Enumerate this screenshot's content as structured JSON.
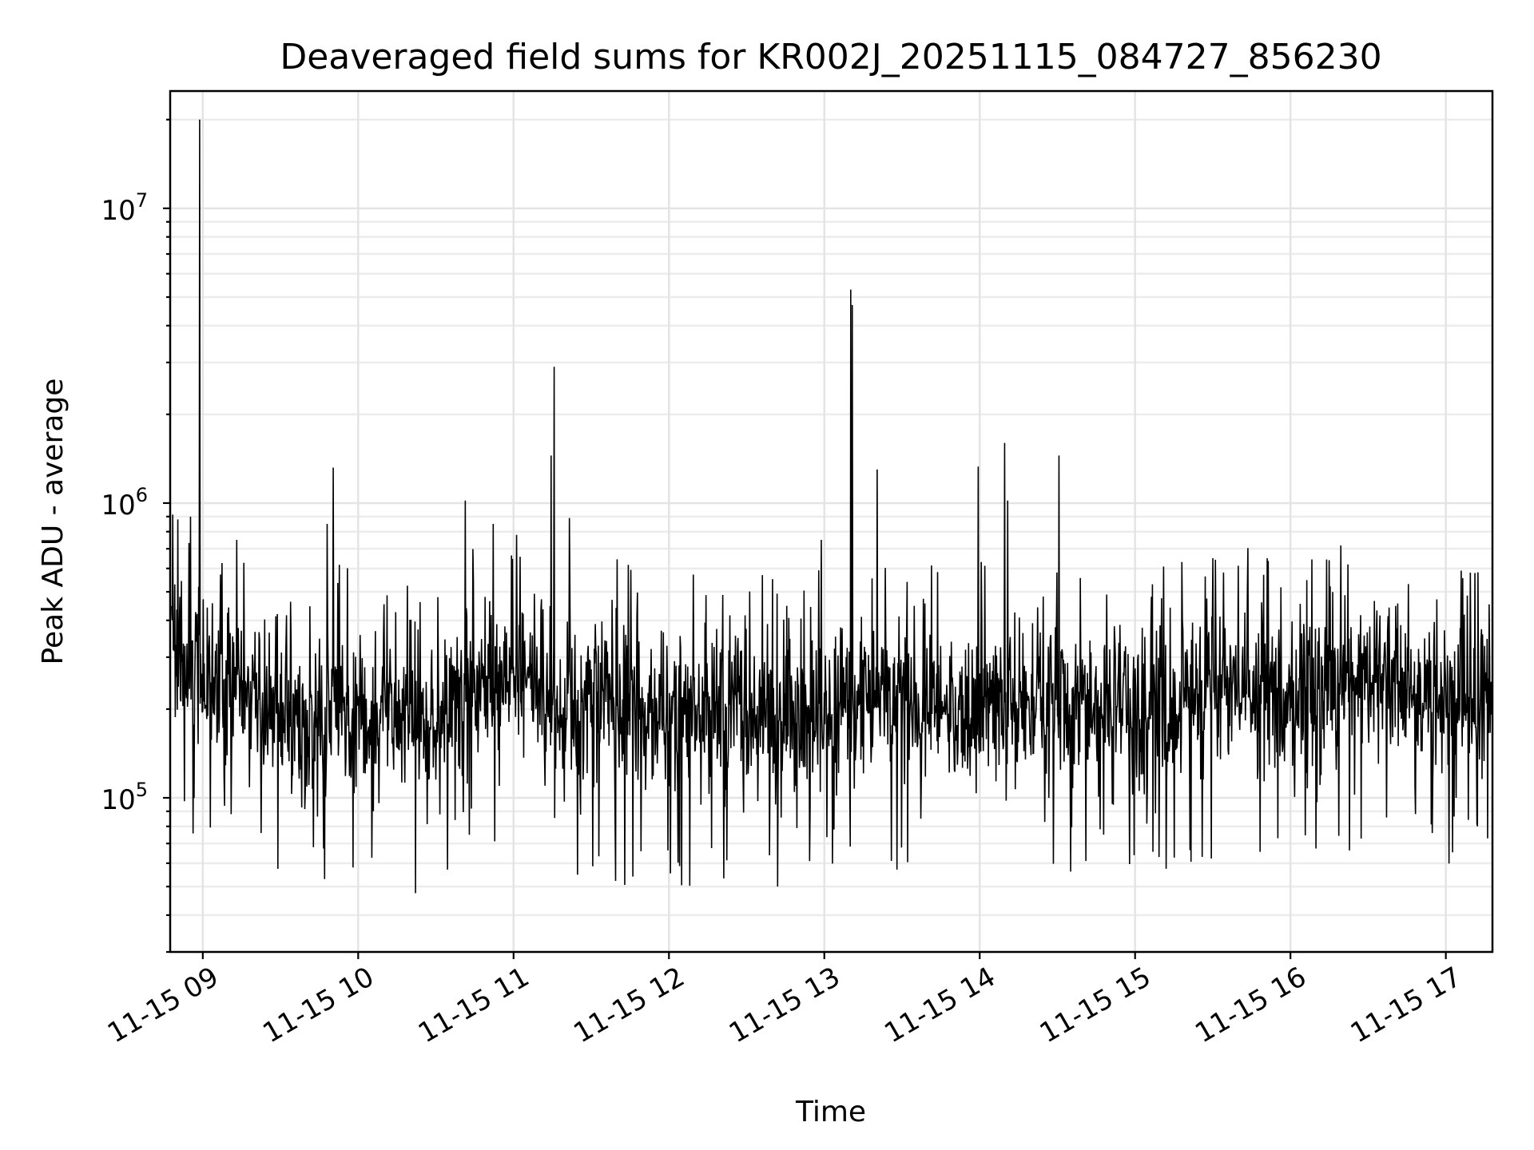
{
  "chart_data": {
    "type": "line",
    "title": "Deaveraged field sums for KR002J_20251115_084727_856230",
    "xlabel": "Time",
    "ylabel": "Peak ADU - average",
    "yscale": "log",
    "ylim": [
      30000,
      25000000
    ],
    "xlim_hours": [
      8.79,
      17.3
    ],
    "grid": true,
    "legend": "none",
    "line_color": "#000000",
    "x_tick_labels": [
      "11-15 09",
      "11-15 10",
      "11-15 11",
      "11-15 12",
      "11-15 13",
      "11-15 14",
      "11-15 15",
      "11-15 16",
      "11-15 17"
    ],
    "x_tick_hours": [
      9,
      10,
      11,
      12,
      13,
      14,
      15,
      16,
      17
    ],
    "y_tick_labels": [
      {
        "base": "10",
        "exp": "5",
        "value": 100000
      },
      {
        "base": "10",
        "exp": "6",
        "value": 1000000
      },
      {
        "base": "10",
        "exp": "7",
        "value": 10000000
      }
    ],
    "series": [
      {
        "points_hours": [
          8.8,
          8.87,
          8.95,
          9.05,
          9.2,
          9.4,
          9.6,
          9.75,
          9.9,
          10.1,
          10.3,
          10.5,
          10.7,
          10.9,
          11.1,
          11.3,
          11.5,
          11.7,
          11.9,
          12.1,
          12.3,
          12.5,
          12.7,
          12.9,
          13.1,
          13.3,
          13.5,
          13.7,
          13.9,
          14.1,
          14.3,
          14.5,
          14.7,
          14.9,
          15.1,
          15.3,
          15.5,
          15.7,
          15.9,
          16.1,
          16.3,
          16.5,
          16.7,
          16.9,
          17.1,
          17.28
        ],
        "level_values": [
          330000,
          290000,
          300000,
          250000,
          220000,
          200000,
          170000,
          190000,
          200000,
          190000,
          180000,
          170000,
          230000,
          260000,
          240000,
          190000,
          230000,
          200000,
          180000,
          200000,
          190000,
          180000,
          190000,
          190000,
          200000,
          220000,
          200000,
          200000,
          190000,
          210000,
          200000,
          190000,
          210000,
          220000,
          200000,
          220000,
          230000,
          240000,
          230000,
          220000,
          240000,
          250000,
          230000,
          220000,
          230000,
          210000
        ],
        "peaks": [
          {
            "hour": 8.98,
            "value": 20000000
          },
          {
            "hour": 8.84,
            "value": 880000
          },
          {
            "hour": 8.92,
            "value": 900000
          },
          {
            "hour": 9.22,
            "value": 750000
          },
          {
            "hour": 9.48,
            "value": 420000
          },
          {
            "hour": 9.8,
            "value": 850000
          },
          {
            "hour": 9.84,
            "value": 1320000
          },
          {
            "hour": 10.69,
            "value": 1020000
          },
          {
            "hour": 10.87,
            "value": 850000
          },
          {
            "hour": 11.02,
            "value": 780000
          },
          {
            "hour": 11.24,
            "value": 1450000
          },
          {
            "hour": 11.26,
            "value": 2900000
          },
          {
            "hour": 11.36,
            "value": 890000
          },
          {
            "hour": 12.98,
            "value": 750000
          },
          {
            "hour": 13.17,
            "value": 5300000
          },
          {
            "hour": 13.18,
            "value": 4700000
          },
          {
            "hour": 13.34,
            "value": 1300000
          },
          {
            "hour": 13.99,
            "value": 1330000
          },
          {
            "hour": 14.16,
            "value": 1600000
          },
          {
            "hour": 14.18,
            "value": 1020000
          },
          {
            "hour": 14.51,
            "value": 1450000
          },
          {
            "hour": 15.5,
            "value": 650000
          },
          {
            "hour": 15.85,
            "value": 650000
          },
          {
            "hour": 16.25,
            "value": 640000
          },
          {
            "hour": 17.1,
            "value": 590000
          }
        ]
      }
    ]
  }
}
